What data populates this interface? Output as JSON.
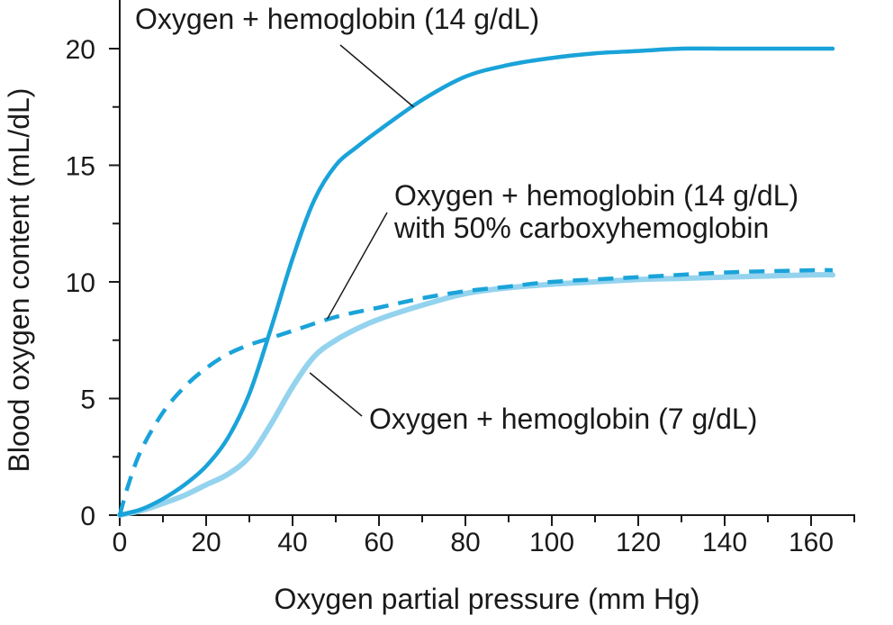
{
  "chart_data": {
    "type": "line",
    "xlabel": "Oxygen partial pressure (mm Hg)",
    "ylabel": "Blood oxygen content (mL/dL)",
    "xlim": [
      0,
      170
    ],
    "ylim": [
      0,
      20
    ],
    "x_ticks": [
      0,
      20,
      40,
      60,
      80,
      100,
      120,
      140,
      160
    ],
    "y_ticks": [
      0,
      5,
      10,
      15,
      20
    ],
    "grid": false,
    "legend": "none",
    "series": [
      {
        "name": "Oxygen + hemoglobin (14 g/dL)",
        "style": "solid",
        "color": "#1aa3d9",
        "x": [
          0,
          5,
          10,
          15,
          20,
          25,
          30,
          35,
          40,
          45,
          50,
          55,
          60,
          70,
          80,
          90,
          100,
          110,
          120,
          130,
          140,
          150,
          160,
          165
        ],
        "y": [
          0,
          0.25,
          0.7,
          1.3,
          2.1,
          3.3,
          5.2,
          8.0,
          11.0,
          13.5,
          15.0,
          15.8,
          16.5,
          17.8,
          18.8,
          19.3,
          19.6,
          19.8,
          19.9,
          20.0,
          20.0,
          20.0,
          20.0,
          20.0
        ]
      },
      {
        "name": "Oxygen + hemoglobin (14 g/dL) with 50% carboxyhemoglobin",
        "style": "dashed",
        "color": "#1aa3d9",
        "x": [
          0,
          2,
          5,
          10,
          15,
          20,
          25,
          30,
          35,
          40,
          50,
          60,
          70,
          80,
          90,
          100,
          120,
          140,
          160,
          165
        ],
        "y": [
          0,
          1.3,
          2.8,
          4.4,
          5.5,
          6.3,
          6.9,
          7.3,
          7.6,
          7.9,
          8.5,
          8.9,
          9.3,
          9.6,
          9.8,
          10.0,
          10.2,
          10.4,
          10.5,
          10.5
        ]
      },
      {
        "name": "Oxygen + hemoglobin (7 g/dL)",
        "style": "solid",
        "color": "#94d3ee",
        "x": [
          0,
          5,
          10,
          15,
          20,
          25,
          30,
          35,
          40,
          45,
          50,
          55,
          60,
          70,
          80,
          90,
          100,
          110,
          120,
          130,
          140,
          150,
          160,
          165
        ],
        "y": [
          0,
          0.2,
          0.5,
          0.85,
          1.3,
          1.75,
          2.5,
          3.9,
          5.5,
          6.8,
          7.5,
          8.0,
          8.4,
          9.0,
          9.5,
          9.75,
          9.9,
          10.0,
          10.1,
          10.15,
          10.2,
          10.25,
          10.3,
          10.3
        ]
      }
    ],
    "annotations": [
      {
        "lines": [
          "Oxygen + hemoglobin (14 g/dL)"
        ],
        "anchor_x": 68,
        "anchor_y": 17.5
      },
      {
        "lines": [
          "Oxygen + hemoglobin (14 g/dL)",
          "with 50% carboxyhemoglobin"
        ],
        "anchor_x": 48,
        "anchor_y": 8.4
      },
      {
        "lines": [
          "Oxygen + hemoglobin (7 g/dL)"
        ],
        "anchor_x": 44,
        "anchor_y": 6.1
      }
    ]
  }
}
